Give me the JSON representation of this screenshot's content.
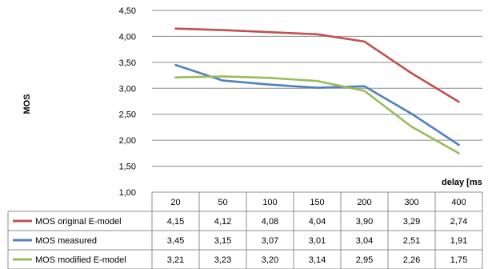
{
  "chart_data": {
    "type": "line",
    "ylabel": "MOS",
    "xlabel": "delay [ms",
    "ylim": [
      1.0,
      4.5
    ],
    "yticks": [
      "1,00",
      "1,50",
      "2,00",
      "2,50",
      "3,00",
      "3,50",
      "4,00",
      "4,50"
    ],
    "categories": [
      "20",
      "50",
      "100",
      "150",
      "200",
      "300",
      "400"
    ],
    "grid": "horizontal",
    "legend": "table-below",
    "series": [
      {
        "name": "MOS original E-model",
        "color": "#c0504d",
        "values": [
          4.15,
          4.12,
          4.08,
          4.04,
          3.9,
          3.29,
          2.74
        ],
        "labels": [
          "4,15",
          "4,12",
          "4,08",
          "4,04",
          "3,90",
          "3,29",
          "2,74"
        ]
      },
      {
        "name": "MOS measured",
        "color": "#4f81bd",
        "values": [
          3.45,
          3.15,
          3.07,
          3.01,
          3.04,
          2.51,
          1.91
        ],
        "labels": [
          "3,45",
          "3,15",
          "3,07",
          "3,01",
          "3,04",
          "2,51",
          "1,91"
        ]
      },
      {
        "name": "MOS modified E-model",
        "color": "#9bbb59",
        "values": [
          3.21,
          3.23,
          3.2,
          3.14,
          2.95,
          2.26,
          1.75
        ],
        "labels": [
          "3,21",
          "3,23",
          "3,20",
          "3,14",
          "2,95",
          "2,26",
          "1,75"
        ]
      }
    ]
  }
}
